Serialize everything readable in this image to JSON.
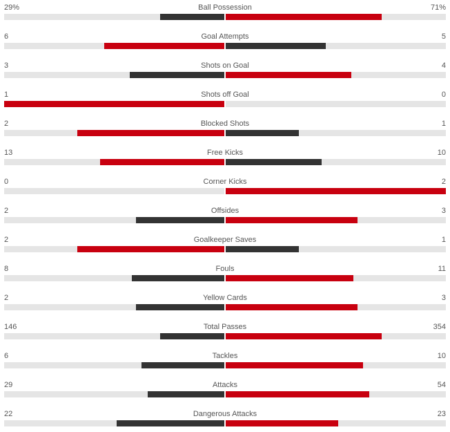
{
  "colors": {
    "leading": "#c8000f",
    "trailing": "#333333",
    "track": "#e5e5e5"
  },
  "stats": [
    {
      "name": "Ball Possession",
      "home": "29%",
      "away": "71%",
      "home_share": 0.29,
      "away_share": 0.71,
      "home_leads": false
    },
    {
      "name": "Goal Attempts",
      "home": "6",
      "away": "5",
      "home_share": 0.545,
      "away_share": 0.455,
      "home_leads": true
    },
    {
      "name": "Shots on Goal",
      "home": "3",
      "away": "4",
      "home_share": 0.4286,
      "away_share": 0.5714,
      "home_leads": false
    },
    {
      "name": "Shots off Goal",
      "home": "1",
      "away": "0",
      "home_share": 1.0,
      "away_share": 0.0,
      "home_leads": true
    },
    {
      "name": "Blocked Shots",
      "home": "2",
      "away": "1",
      "home_share": 0.6667,
      "away_share": 0.3333,
      "home_leads": true
    },
    {
      "name": "Free Kicks",
      "home": "13",
      "away": "10",
      "home_share": 0.5652,
      "away_share": 0.4348,
      "home_leads": true
    },
    {
      "name": "Corner Kicks",
      "home": "0",
      "away": "2",
      "home_share": 0.0,
      "away_share": 1.0,
      "home_leads": false
    },
    {
      "name": "Offsides",
      "home": "2",
      "away": "3",
      "home_share": 0.4,
      "away_share": 0.6,
      "home_leads": false
    },
    {
      "name": "Goalkeeper Saves",
      "home": "2",
      "away": "1",
      "home_share": 0.6667,
      "away_share": 0.3333,
      "home_leads": true
    },
    {
      "name": "Fouls",
      "home": "8",
      "away": "11",
      "home_share": 0.421,
      "away_share": 0.579,
      "home_leads": false
    },
    {
      "name": "Yellow Cards",
      "home": "2",
      "away": "3",
      "home_share": 0.4,
      "away_share": 0.6,
      "home_leads": false
    },
    {
      "name": "Total Passes",
      "home": "146",
      "away": "354",
      "home_share": 0.292,
      "away_share": 0.708,
      "home_leads": false
    },
    {
      "name": "Tackles",
      "home": "6",
      "away": "10",
      "home_share": 0.375,
      "away_share": 0.625,
      "home_leads": false
    },
    {
      "name": "Attacks",
      "home": "29",
      "away": "54",
      "home_share": 0.3494,
      "away_share": 0.6506,
      "home_leads": false
    },
    {
      "name": "Dangerous Attacks",
      "home": "22",
      "away": "23",
      "home_share": 0.4889,
      "away_share": 0.5111,
      "home_leads": false
    }
  ]
}
